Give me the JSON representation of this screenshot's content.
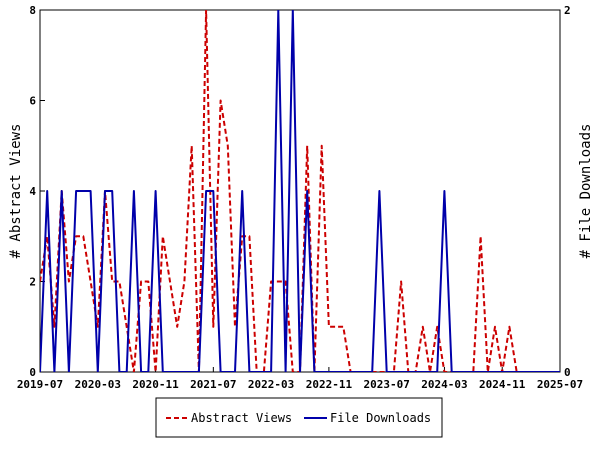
{
  "chart_data": {
    "type": "line",
    "title": "",
    "x_tick_labels": [
      "2019-07",
      "2020-03",
      "2020-11",
      "2021-07",
      "2022-03",
      "2022-11",
      "2023-07",
      "2024-03",
      "2024-11",
      "2025-07"
    ],
    "xlim": [
      "2019-07",
      "2025-07"
    ],
    "y_left": {
      "label": "# Abstract Views",
      "ylim": [
        0,
        8
      ],
      "ticks": [
        "0",
        "2",
        "4",
        "6",
        "8"
      ]
    },
    "y_right": {
      "label": "# File Downloads",
      "ylim": [
        0,
        2
      ],
      "ticks": [
        "0",
        "2"
      ]
    },
    "grid": false,
    "legend_position": "bottom-center",
    "series": [
      {
        "name": "Abstract Views",
        "axis": "left",
        "color": "#cc0000",
        "style": "dashed",
        "x": [
          "2019-07",
          "2019-08",
          "2019-09",
          "2019-10",
          "2019-11",
          "2019-12",
          "2020-01",
          "2020-02",
          "2020-03",
          "2020-04",
          "2020-05",
          "2020-06",
          "2020-07",
          "2020-08",
          "2020-09",
          "2020-10",
          "2020-11",
          "2020-12",
          "2021-01",
          "2021-02",
          "2021-03",
          "2021-04",
          "2021-05",
          "2021-06",
          "2021-07",
          "2021-08",
          "2021-09",
          "2021-10",
          "2021-11",
          "2021-12",
          "2022-01",
          "2022-02",
          "2022-03",
          "2022-04",
          "2022-05",
          "2022-06",
          "2022-07",
          "2022-08",
          "2022-09",
          "2022-10",
          "2022-11",
          "2022-12",
          "2023-01",
          "2023-02",
          "2023-03",
          "2023-04",
          "2023-05",
          "2023-06",
          "2023-07",
          "2023-08",
          "2023-09",
          "2023-10",
          "2023-11",
          "2023-12",
          "2024-01",
          "2024-02",
          "2024-03",
          "2024-04",
          "2024-05",
          "2024-06",
          "2024-07",
          "2024-08",
          "2024-09",
          "2024-10",
          "2024-11",
          "2024-12",
          "2025-01",
          "2025-02",
          "2025-03",
          "2025-04",
          "2025-05",
          "2025-06",
          "2025-07"
        ],
        "values": [
          2,
          3,
          1,
          4,
          2,
          3,
          3,
          2,
          1,
          4,
          2,
          2,
          1,
          0,
          2,
          2,
          0,
          3,
          2,
          1,
          2,
          5,
          0,
          8,
          1,
          6,
          5,
          1,
          3,
          3,
          0,
          0,
          2,
          2,
          2,
          0,
          0,
          5,
          0,
          5,
          1,
          1,
          1,
          0,
          0,
          0,
          0,
          0,
          0,
          0,
          2,
          0,
          0,
          1,
          0,
          1,
          0,
          0,
          0,
          0,
          0,
          3,
          0,
          1,
          0,
          1,
          0,
          0,
          0,
          0,
          0,
          0,
          0
        ]
      },
      {
        "name": "File Downloads",
        "axis": "right",
        "color": "#0000aa",
        "style": "solid",
        "x": [
          "2019-07",
          "2019-08",
          "2019-09",
          "2019-10",
          "2019-11",
          "2019-12",
          "2020-01",
          "2020-02",
          "2020-03",
          "2020-04",
          "2020-05",
          "2020-06",
          "2020-07",
          "2020-08",
          "2020-09",
          "2020-10",
          "2020-11",
          "2020-12",
          "2021-01",
          "2021-02",
          "2021-03",
          "2021-04",
          "2021-05",
          "2021-06",
          "2021-07",
          "2021-08",
          "2021-09",
          "2021-10",
          "2021-11",
          "2021-12",
          "2022-01",
          "2022-02",
          "2022-03",
          "2022-04",
          "2022-05",
          "2022-06",
          "2022-07",
          "2022-08",
          "2022-09",
          "2022-10",
          "2022-11",
          "2022-12",
          "2023-01",
          "2023-02",
          "2023-03",
          "2023-04",
          "2023-05",
          "2023-06",
          "2023-07",
          "2023-08",
          "2023-09",
          "2023-10",
          "2023-11",
          "2023-12",
          "2024-01",
          "2024-02",
          "2024-03",
          "2024-04",
          "2024-05",
          "2024-06",
          "2024-07",
          "2024-08",
          "2024-09",
          "2024-10",
          "2024-11",
          "2024-12",
          "2025-01",
          "2025-02",
          "2025-03",
          "2025-04",
          "2025-05",
          "2025-06",
          "2025-07"
        ],
        "values": [
          0,
          1,
          0,
          1,
          0,
          1,
          1,
          1,
          0,
          1,
          1,
          0,
          0,
          1,
          0,
          0,
          1,
          0,
          0,
          0,
          0,
          0,
          0,
          1,
          1,
          0,
          0,
          0,
          1,
          0,
          0,
          0,
          0,
          2,
          0,
          2,
          0,
          1,
          0,
          0,
          0,
          0,
          0,
          0,
          0,
          0,
          0,
          1,
          0,
          0,
          0,
          0,
          0,
          0,
          0,
          0,
          1,
          0,
          0,
          0,
          0,
          0,
          0,
          0,
          0,
          0,
          0,
          0,
          0,
          0,
          0,
          0,
          0
        ]
      }
    ]
  }
}
